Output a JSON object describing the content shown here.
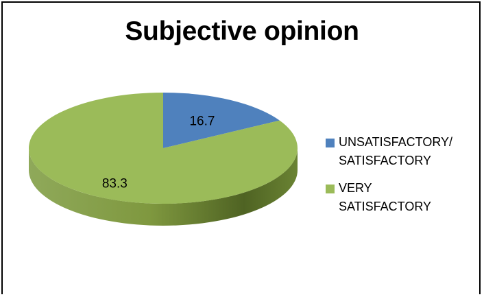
{
  "chart_data": {
    "type": "pie",
    "title": "Subjective opinion",
    "categories": [
      "UNSATISFACTORY/\nSATISFACTORY",
      "VERY\nSATISFACTORY"
    ],
    "values": [
      16.7,
      83.3
    ],
    "data_labels": [
      "16.7",
      "83.3"
    ],
    "colors": [
      "#4f81bd",
      "#9bbb59"
    ],
    "three_d": true,
    "legend_position": "right"
  }
}
